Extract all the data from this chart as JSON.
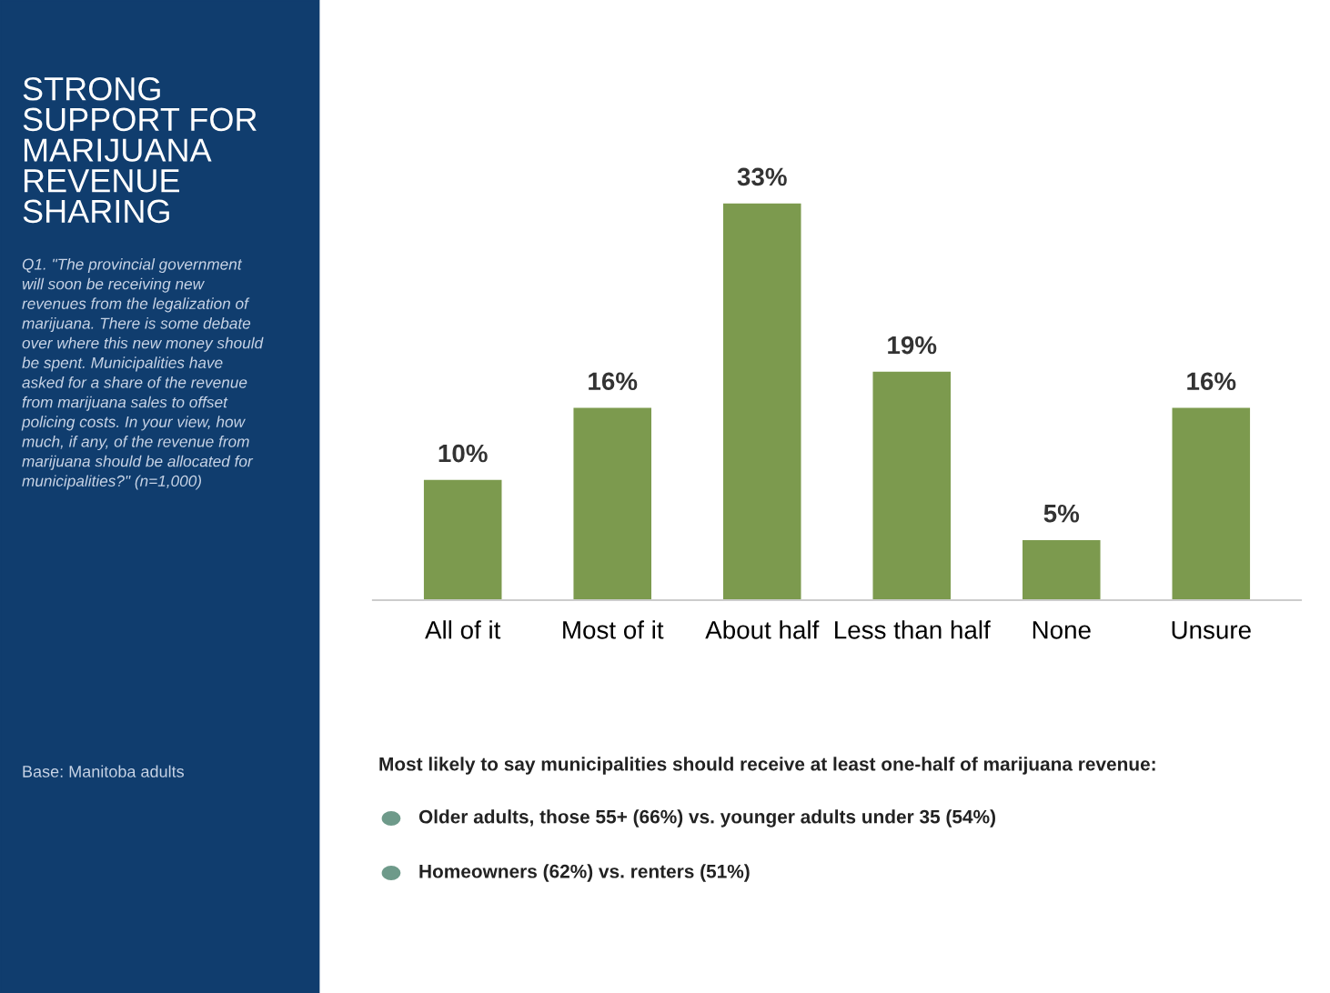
{
  "chart_data": {
    "type": "bar",
    "title": "STRONG SUPPORT FOR MARIJUANA REVENUE SHARING",
    "subtitle": "Q1. \"The provincial government will soon be receiving new revenues from the legalization of marijuana. There is some debate over where this new money should be spent. Municipalities have asked for a share of the revenue from marijuana sales to offset policing costs. In your view, how much, if any, of the revenue from marijuana should be allocated for municipalities?\" (n=1,000)",
    "categories": [
      "All of it",
      "Most of it",
      "About half",
      "Less than half",
      "None",
      "Unsure"
    ],
    "values": [
      10,
      16,
      33,
      19,
      5,
      16
    ],
    "value_labels": [
      "10%",
      "16%",
      "33%",
      "19%",
      "5%",
      "16%"
    ],
    "color": "#7c9a4e",
    "annotations": [
      "Base: Manitoba adults",
      "Most likely to say municipalities should receive at least one-half of marijuana revenue:",
      "Older adults, those 55+ (66%) vs. younger adults under 35 (54%)",
      "Homeowners (62%) vs. renters (51%)"
    ]
  }
}
